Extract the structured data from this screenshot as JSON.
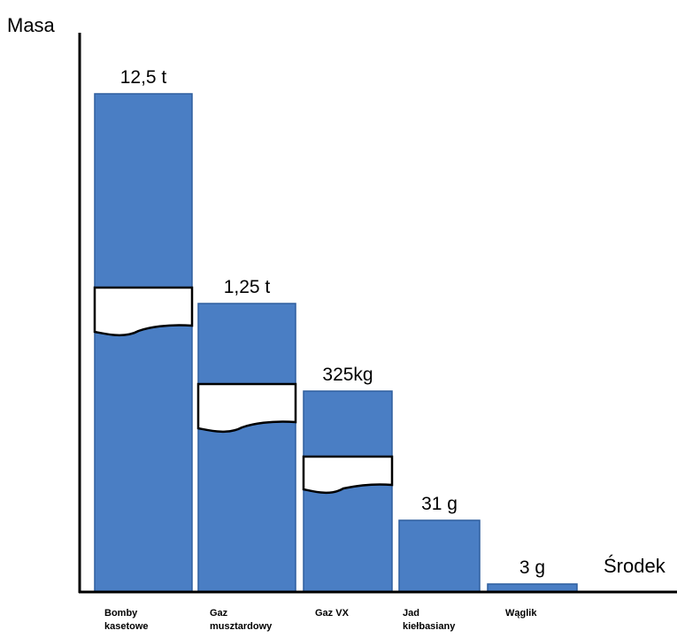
{
  "chart_data": {
    "type": "bar",
    "ylabel": "Masa",
    "xlabel": "Środek",
    "y_scale": "broken (axis breaks shown on bars)",
    "categories": [
      [
        "Bomby",
        "kasetowe"
      ],
      [
        "Gaz",
        "musztardowy"
      ],
      [
        "Gaz VX"
      ],
      [
        "Jad",
        "kiełbasiany"
      ],
      [
        "Wąglik"
      ]
    ],
    "value_labels": [
      "12,5 t",
      "1,25 t",
      "325kg",
      "31 g",
      "3 g"
    ],
    "values_kg": [
      12500,
      1250,
      325,
      0.031,
      0.003
    ],
    "axis_breaks": [
      true,
      true,
      true,
      false,
      false
    ],
    "colors": {
      "bar_fill": "#4a7ec4",
      "bar_stroke": "#2e5f9e",
      "axis": "#000000",
      "break_fill": "#ffffff"
    }
  }
}
